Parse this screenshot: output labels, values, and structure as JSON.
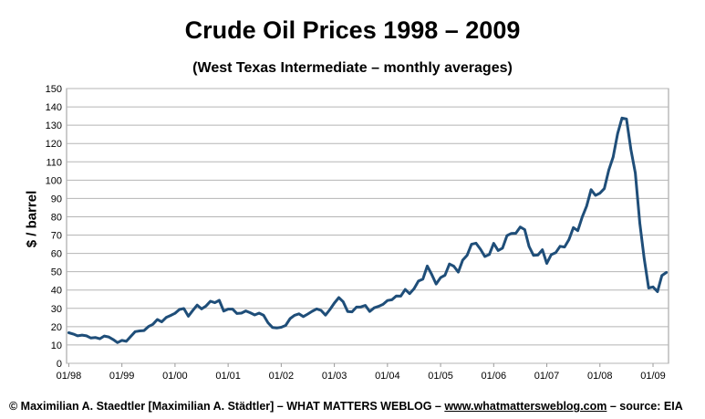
{
  "chart_data": {
    "type": "line",
    "title": "Crude Oil Prices 1998 – 2009",
    "subtitle": "(West Texas Intermediate – monthly averages)",
    "xlabel": "",
    "ylabel": "$ / barrel",
    "ylim": [
      0,
      150
    ],
    "yticks": [
      0,
      10,
      20,
      30,
      40,
      50,
      60,
      70,
      80,
      90,
      100,
      110,
      120,
      130,
      140,
      150
    ],
    "xticks": [
      "01/98",
      "01/99",
      "01/00",
      "01/01",
      "01/02",
      "01/03",
      "01/04",
      "01/05",
      "01/06",
      "01/07",
      "01/08",
      "01/09"
    ],
    "grid": true,
    "line_color": "#1f4e79",
    "series": [
      {
        "start": "1998-01",
        "frequency": "monthly",
        "values": [
          16.7,
          16.0,
          15.0,
          15.4,
          15.0,
          13.8,
          14.1,
          13.4,
          14.9,
          14.4,
          13.0,
          11.3,
          12.5,
          12.0,
          14.7,
          17.3,
          17.7,
          17.9,
          20.1,
          21.3,
          23.9,
          22.6,
          25.0,
          26.1,
          27.3,
          29.4,
          29.9,
          25.7,
          28.8,
          31.8,
          29.7,
          31.3,
          33.9,
          33.1,
          34.4,
          28.5,
          29.6,
          29.6,
          27.2,
          27.4,
          28.6,
          27.6,
          26.4,
          27.4,
          26.2,
          22.2,
          19.6,
          19.3,
          19.7,
          20.7,
          24.4,
          26.2,
          27.0,
          25.5,
          26.9,
          28.4,
          29.7,
          28.9,
          26.3,
          29.4,
          32.9,
          35.9,
          33.6,
          28.3,
          28.1,
          30.7,
          30.8,
          31.6,
          28.3,
          30.3,
          31.1,
          32.2,
          34.3,
          34.7,
          36.8,
          36.7,
          40.3,
          38.0,
          40.7,
          44.9,
          46.0,
          53.1,
          48.5,
          43.3,
          46.8,
          48.1,
          54.2,
          53.0,
          49.8,
          56.3,
          59.0,
          65.0,
          65.6,
          62.3,
          58.3,
          59.4,
          65.5,
          61.6,
          62.9,
          69.7,
          70.9,
          71.0,
          74.4,
          73.0,
          63.8,
          58.9,
          59.1,
          62.0,
          54.5,
          59.3,
          60.4,
          63.9,
          63.5,
          67.5,
          74.1,
          72.4,
          79.9,
          85.8,
          94.8,
          91.7,
          92.9,
          95.4,
          105.5,
          112.6,
          125.4,
          133.9,
          133.4,
          116.6,
          103.9,
          76.6,
          57.3,
          41.1,
          41.7,
          39.1,
          47.9,
          49.6
        ]
      }
    ]
  },
  "footer": {
    "prefix": "© Maximilian A. Staedtler [Maximilian A. Städtler] – WHAT MATTERS WEBLOG – ",
    "link": "www.whatmattersweblog.com",
    "suffix": " – source: EIA"
  }
}
